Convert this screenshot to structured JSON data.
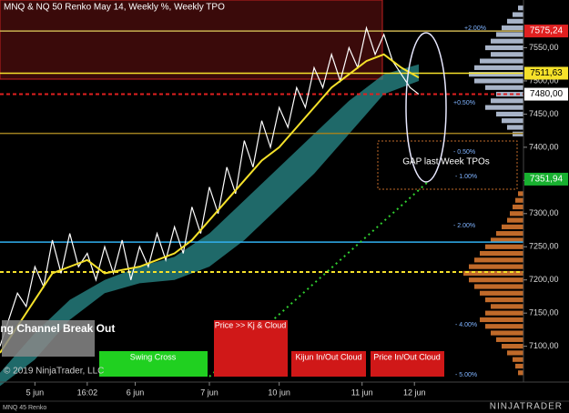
{
  "chart_data": {
    "type": "line",
    "title": "MNQ & NQ 50 Renko May 14, Weekly %, Weekly TPO",
    "instrument": "MNQ 45 Renko",
    "copyright": "© 2019 NinjaTrader, LLC",
    "logo": "NINJATRADER",
    "xlim": [
      0,
      120
    ],
    "ylim": [
      7046,
      7622
    ],
    "xticks": [
      {
        "value": 8,
        "label": "5 jun"
      },
      {
        "value": 20,
        "label": "16:02"
      },
      {
        "value": 31,
        "label": "6 jun"
      },
      {
        "value": 48,
        "label": "7 jun"
      },
      {
        "value": 64,
        "label": "10 jun"
      },
      {
        "value": 83,
        "label": "11 jun"
      },
      {
        "value": 95,
        "label": "12 jun"
      }
    ],
    "yticks": [
      {
        "value": 7100,
        "label": "7100,00"
      },
      {
        "value": 7150,
        "label": "7150,00"
      },
      {
        "value": 7200,
        "label": "7200,00"
      },
      {
        "value": 7250,
        "label": "7250,00"
      },
      {
        "value": 7300,
        "label": "7300,00"
      },
      {
        "value": 7350,
        "label": "7350,00"
      },
      {
        "value": 7400,
        "label": "7400,00"
      },
      {
        "value": 7450,
        "label": "7450,00"
      },
      {
        "value": 7500,
        "label": "7500,00"
      },
      {
        "value": 7550,
        "label": "7550,00"
      }
    ],
    "cloud": {
      "color": "#2a8c8c",
      "x": [
        0,
        8,
        16,
        24,
        32,
        40,
        48,
        56,
        64,
        72,
        80,
        88,
        96
      ],
      "upper": [
        7060,
        7120,
        7170,
        7200,
        7220,
        7235,
        7270,
        7320,
        7370,
        7420,
        7470,
        7510,
        7525
      ],
      "lower": [
        7040,
        7080,
        7140,
        7180,
        7195,
        7200,
        7220,
        7260,
        7310,
        7360,
        7420,
        7480,
        7500
      ]
    },
    "series": [
      {
        "color": "#ffffff",
        "x": [
          0,
          2,
          4,
          6,
          8,
          10,
          12,
          14,
          16,
          18,
          20,
          22,
          24,
          26,
          28,
          30,
          32,
          34,
          36,
          38,
          40,
          42,
          44,
          46,
          48,
          50,
          52,
          54,
          56,
          58,
          60,
          62,
          64,
          66,
          68,
          70,
          72,
          74,
          76,
          78,
          80,
          82,
          84,
          86,
          88,
          90,
          92,
          94,
          96
        ],
        "values": [
          7100,
          7140,
          7180,
          7160,
          7220,
          7190,
          7260,
          7210,
          7270,
          7220,
          7240,
          7200,
          7250,
          7210,
          7260,
          7200,
          7250,
          7220,
          7270,
          7230,
          7280,
          7240,
          7310,
          7270,
          7340,
          7300,
          7370,
          7330,
          7410,
          7370,
          7440,
          7400,
          7460,
          7430,
          7490,
          7460,
          7520,
          7490,
          7540,
          7500,
          7550,
          7520,
          7580,
          7540,
          7570,
          7530,
          7510,
          7490,
          7480
        ]
      },
      {
        "color": "#f5e12a",
        "x": [
          0,
          4,
          8,
          12,
          16,
          20,
          24,
          28,
          32,
          36,
          40,
          44,
          48,
          52,
          56,
          60,
          64,
          68,
          72,
          76,
          80,
          84,
          88,
          92,
          96
        ],
        "values": [
          7090,
          7130,
          7170,
          7210,
          7220,
          7230,
          7210,
          7215,
          7220,
          7230,
          7240,
          7260,
          7290,
          7320,
          7350,
          7380,
          7400,
          7430,
          7460,
          7490,
          7510,
          7530,
          7540,
          7520,
          7505
        ]
      }
    ],
    "levels": [
      {
        "value": 7575.24,
        "color": "#c8b050",
        "label": "7575,24",
        "bg": "#e02020",
        "fg": "#fff"
      },
      {
        "value": 7511.63,
        "color": "#f5e12a",
        "label": "7511,63",
        "bg": "#f5e12a",
        "fg": "#000"
      },
      {
        "value": 7480,
        "color": "#e02020",
        "dash": true,
        "label": "7480,00",
        "bg": "#fff",
        "fg": "#000"
      },
      {
        "value": 7421,
        "color": "#a08020"
      },
      {
        "value": 7351.94,
        "label": "7351,94",
        "bg": "#18b030",
        "fg": "#fff"
      },
      {
        "value": 7257,
        "color": "#30b0f0"
      },
      {
        "value": 7212,
        "color": "#f5e12a",
        "dash": true
      }
    ],
    "profile": {
      "upper_color": "#a8b4c8",
      "lower_color": "#c06a2a",
      "upper_prices": [
        7610,
        7600,
        7590,
        7580,
        7570,
        7560,
        7550,
        7540,
        7530,
        7520,
        7510,
        7500,
        7490,
        7480,
        7470,
        7460,
        7450,
        7440,
        7430,
        7420
      ],
      "upper_counts": [
        2,
        4,
        6,
        8,
        10,
        12,
        14,
        12,
        16,
        18,
        20,
        18,
        14,
        10,
        12,
        14,
        10,
        8,
        6,
        4
      ],
      "lower_prices": [
        7330,
        7320,
        7310,
        7300,
        7290,
        7280,
        7270,
        7260,
        7250,
        7240,
        7230,
        7220,
        7210,
        7200,
        7190,
        7180,
        7170,
        7160,
        7150,
        7140,
        7130,
        7120,
        7110,
        7100,
        7090,
        7080,
        7070,
        7060
      ],
      "lower_counts": [
        2,
        3,
        4,
        5,
        6,
        8,
        10,
        12,
        14,
        16,
        18,
        20,
        22,
        20,
        18,
        16,
        14,
        12,
        14,
        16,
        14,
        12,
        10,
        8,
        6,
        4,
        3,
        2
      ]
    },
    "percent_labels": [
      "+2.00%",
      "+0.50%",
      "- 0.50%",
      "- 1.00%",
      "- 2.00%",
      "- 4.00%",
      "- 5.00%"
    ],
    "annotations": [
      "Swing Channel Break Out",
      "Swing Cross",
      "Price >> Kj & Cloud",
      "Kijun In/Out Cloud",
      "Price In/Out Cloud",
      "GAP last Week TPOs"
    ]
  }
}
